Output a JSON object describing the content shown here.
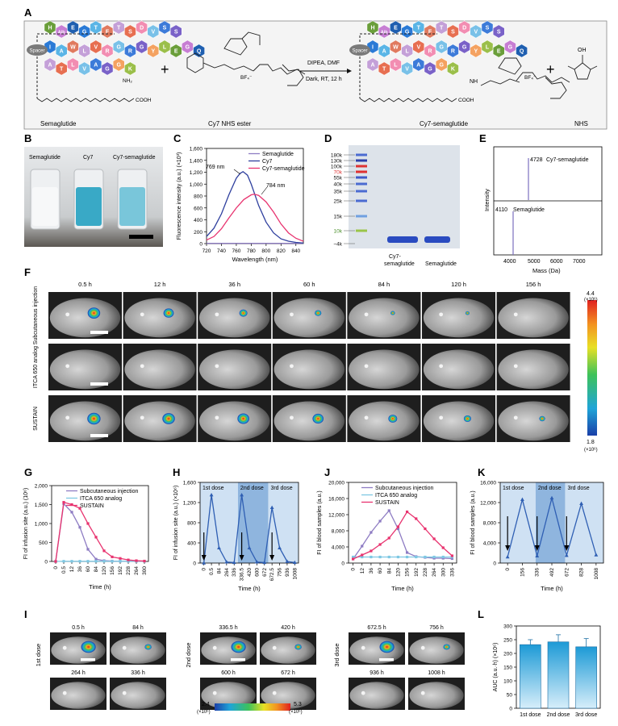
{
  "panelA": {
    "letter": "A",
    "left": {
      "caption": "Semaglutide",
      "spacer": "Spacer",
      "cooh": "COOH",
      "nh2": "NH₂",
      "row1": [
        "H",
        "Aib",
        "E",
        "G",
        "T",
        "F",
        "T",
        "S",
        "D",
        "V",
        "S",
        "S"
      ],
      "row2": [
        "I",
        "A",
        "W",
        "L",
        "V",
        "R",
        "G",
        "R",
        "G",
        "Y",
        "L",
        "E",
        "G",
        "Q"
      ],
      "row3": [
        "A",
        "T",
        "L",
        "V",
        "A",
        "G",
        "G",
        "K"
      ]
    },
    "plus1": "+",
    "reagent": "Cy7 NHS ester",
    "bf4": "BF₄⁻",
    "conditions_top": "DIPEA, DMF",
    "conditions_bottom": "Dark, RT, 12 h",
    "product": "Cy7-semaglutide",
    "nh": "NH",
    "plus2": "+",
    "byproduct": "NHS",
    "oh": "OH"
  },
  "panelB": {
    "letter": "B",
    "labels": [
      "Semaglutide",
      "Cy7",
      "Cy7-semaglutide"
    ]
  },
  "panelC": {
    "letter": "C",
    "ylabel": "Fluorescence intensity (a.u.) (×10³)",
    "xlabel": "Wavelength (nm)",
    "legend": [
      "Semaglutide",
      "Cy7",
      "Cy7-semaglutide"
    ],
    "ann1": "769 nm",
    "ann2": "784 nm"
  },
  "panelD": {
    "letter": "D",
    "ladder": [
      "180k",
      "130k",
      "100k",
      "70k",
      "55k",
      "40k",
      "35k",
      "25k",
      "15k",
      "10k",
      "~4k"
    ],
    "lanes": [
      "Cy7-semaglutide",
      "Semaglutide"
    ]
  },
  "panelE": {
    "letter": "E",
    "ylabel": "Intensity",
    "xlabel": "Mass (Da)",
    "peak1_mass": "4728",
    "peak1_label": "Cy7-semaglutide",
    "peak2_mass": "4110",
    "peak2_label": "Semaglutide",
    "ticks": [
      "4000",
      "5000",
      "6000",
      "7000"
    ]
  },
  "panelF": {
    "letter": "F",
    "times": [
      "0.5 h",
      "12 h",
      "36 h",
      "60 h",
      "84 h",
      "120 h",
      "156 h"
    ],
    "rows": [
      "Subcutaneous injection",
      "ITCA 650 analog",
      "SUSTAIN"
    ],
    "scale_max": "4.4",
    "scale_min": "1.8",
    "scale_unit": "(×10⁶)"
  },
  "panelI": {
    "letter": "I",
    "groups": [
      {
        "label": "1st dose",
        "times": [
          "0.5 h",
          "84 h",
          "264 h",
          "336 h"
        ]
      },
      {
        "label": "2nd dose",
        "times": [
          "336.5 h",
          "420 h",
          "600 h",
          "672 h"
        ]
      },
      {
        "label": "3rd dose",
        "times": [
          "672.5 h",
          "756 h",
          "936 h",
          "1008 h"
        ]
      }
    ],
    "scale_min": "2.4",
    "scale_max": "5.3",
    "scale_unit": "(×10⁶)"
  },
  "panelLetters": {
    "G": "G",
    "H": "H",
    "J": "J",
    "K": "K",
    "L": "L"
  },
  "colors": {
    "sub": "#8e7cc3",
    "itca": "#7ec8e3",
    "sustain": "#e8336f",
    "cy7": "#2e3f9e",
    "dose": "#2f5fb3"
  },
  "chart_data": [
    {
      "id": "C",
      "type": "line",
      "title": "",
      "xlabel": "Wavelength (nm)",
      "ylabel": "Fluorescence intensity (a.u.) (×10³)",
      "xlim": [
        720,
        850
      ],
      "ylim": [
        0,
        1600
      ],
      "xticks": [
        720,
        740,
        760,
        780,
        800,
        820,
        840
      ],
      "yticks": [
        0,
        200,
        400,
        600,
        800,
        1000,
        1200,
        1400,
        1600
      ],
      "series": [
        {
          "name": "Semaglutide",
          "x": [
            720,
            850
          ],
          "y": [
            5,
            5
          ]
        },
        {
          "name": "Cy7",
          "x": [
            720,
            730,
            740,
            750,
            760,
            765,
            769,
            775,
            780,
            790,
            800,
            810,
            820,
            830,
            840,
            850
          ],
          "y": [
            120,
            260,
            500,
            820,
            1100,
            1180,
            1210,
            1150,
            1000,
            640,
            360,
            180,
            80,
            40,
            20,
            10
          ]
        },
        {
          "name": "Cy7-semaglutide",
          "x": [
            720,
            730,
            740,
            750,
            760,
            770,
            780,
            784,
            790,
            800,
            810,
            820,
            830,
            840,
            850
          ],
          "y": [
            60,
            120,
            250,
            430,
            600,
            740,
            820,
            830,
            810,
            700,
            530,
            330,
            180,
            90,
            40
          ]
        }
      ]
    },
    {
      "id": "G",
      "type": "line",
      "xlabel": "Time (h)",
      "ylabel": "FI of infusion site (a.u.) (10⁶)",
      "xlim": [
        0,
        300
      ],
      "ylim": [
        0,
        2000
      ],
      "xticks": [
        0,
        0.5,
        12,
        36,
        60,
        84,
        120,
        156,
        192,
        228,
        264,
        300
      ],
      "yticks": [
        0,
        500,
        1000,
        1500,
        2000
      ],
      "series": [
        {
          "name": "Subcutaneous injection",
          "x": [
            0,
            0.5,
            12,
            36,
            60,
            84,
            120,
            156,
            192,
            228,
            264,
            300
          ],
          "y": [
            0,
            1520,
            1300,
            900,
            320,
            60,
            20,
            10,
            5,
            5,
            5,
            5
          ]
        },
        {
          "name": "ITCA 650 analog",
          "x": [
            0,
            0.5,
            12,
            36,
            60,
            84,
            120,
            156,
            192,
            228,
            264,
            300
          ],
          "y": [
            0,
            5,
            5,
            5,
            5,
            5,
            5,
            5,
            5,
            5,
            5,
            5
          ]
        },
        {
          "name": "SUSTAIN",
          "x": [
            0,
            0.5,
            12,
            36,
            60,
            84,
            120,
            156,
            192,
            228,
            264,
            300
          ],
          "y": [
            0,
            1560,
            1500,
            1400,
            1000,
            640,
            280,
            120,
            80,
            40,
            20,
            10
          ]
        }
      ]
    },
    {
      "id": "H",
      "type": "line",
      "xlabel": "Time (h)",
      "ylabel": "FI of infusion site (a.u.) (×10⁶)",
      "ylim": [
        0,
        1600
      ],
      "xticks": [
        0,
        0.5,
        84,
        264,
        336,
        336.5,
        420,
        600,
        672,
        672.5,
        756,
        936,
        1008
      ],
      "yticks": [
        0,
        400,
        800,
        1200,
        1600
      ],
      "bands": [
        "1st dose",
        "2nd dose",
        "3rd dose"
      ],
      "series": [
        {
          "name": "Infusion site",
          "x": [
            0,
            0.5,
            84,
            264,
            336,
            336.5,
            420,
            600,
            672,
            672.5,
            756,
            936,
            1008
          ],
          "y": [
            0,
            1350,
            300,
            20,
            10,
            1350,
            300,
            20,
            10,
            1100,
            300,
            30,
            10
          ]
        }
      ]
    },
    {
      "id": "J",
      "type": "line",
      "xlabel": "Time (h)",
      "ylabel": "FI of blood samples (a.u.)",
      "xlim": [
        0,
        336
      ],
      "ylim": [
        0,
        20000
      ],
      "xticks": [
        0,
        12,
        36,
        60,
        84,
        120,
        156,
        192,
        228,
        264,
        300,
        336
      ],
      "yticks": [
        0,
        4000,
        8000,
        12000,
        16000,
        20000
      ],
      "series": [
        {
          "name": "Subcutaneous injection",
          "x": [
            0,
            12,
            36,
            60,
            84,
            120,
            156,
            192,
            228,
            264,
            300,
            336
          ],
          "y": [
            1000,
            4200,
            7600,
            10400,
            13000,
            8500,
            2600,
            1600,
            1400,
            1200,
            1200,
            1100
          ]
        },
        {
          "name": "ITCA 650 analog",
          "x": [
            0,
            12,
            36,
            60,
            84,
            120,
            156,
            192,
            228,
            264,
            300,
            336
          ],
          "y": [
            1500,
            1500,
            1500,
            1500,
            1500,
            1500,
            1500,
            1500,
            1500,
            1500,
            1500,
            1500
          ]
        },
        {
          "name": "SUSTAIN",
          "x": [
            0,
            12,
            36,
            60,
            84,
            120,
            156,
            192,
            228,
            264,
            300,
            336
          ],
          "y": [
            1000,
            2000,
            3000,
            4600,
            6200,
            9000,
            12700,
            11000,
            8500,
            6000,
            3800,
            1800
          ]
        }
      ]
    },
    {
      "id": "K",
      "type": "line",
      "xlabel": "Time (h)",
      "ylabel": "FI of blood samples (a.u.)",
      "xlim": [
        0,
        1008
      ],
      "ylim": [
        0,
        16000
      ],
      "xticks": [
        0,
        156,
        336,
        492,
        672,
        828,
        1008
      ],
      "yticks": [
        0,
        4000,
        8000,
        12000,
        16000
      ],
      "bands": [
        "1st dose",
        "2nd dose",
        "3rd dose"
      ],
      "series": [
        {
          "name": "Blood samples",
          "x": [
            0,
            156,
            336,
            492,
            672,
            828,
            1008
          ],
          "y": [
            1200,
            12600,
            1400,
            12900,
            1500,
            11800,
            1600
          ]
        }
      ]
    },
    {
      "id": "L",
      "type": "bar",
      "xlabel": "",
      "ylabel": "AUC (a.u.·h) (×10⁶)",
      "ylim": [
        0,
        300
      ],
      "yticks": [
        0,
        50,
        100,
        150,
        200,
        250,
        300
      ],
      "categories": [
        "1st dose",
        "2nd dose",
        "3rd dose"
      ],
      "values": [
        232,
        242,
        224
      ],
      "errors": [
        18,
        26,
        30
      ]
    }
  ]
}
